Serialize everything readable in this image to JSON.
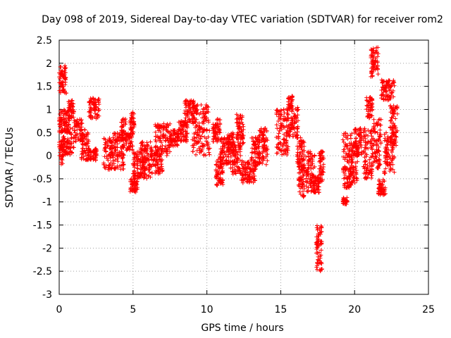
{
  "chart_data": {
    "type": "scatter",
    "title": "Day 098 of 2019, Sidereal Day-to-day VTEC variation (SDTVAR) for receiver rom2",
    "xlabel": "GPS time / hours",
    "ylabel": "SDTVAR / TECUs",
    "xlim": [
      0,
      25
    ],
    "ylim": [
      -3,
      2.5
    ],
    "grid": true,
    "marker": "+",
    "marker_color": "#ff0000",
    "x_ticks": [
      "0",
      "5",
      "10",
      "15",
      "20",
      "25"
    ],
    "y_ticks": [
      "2.5",
      "2",
      "1.5",
      "1",
      "0.5",
      "0",
      "-0.5",
      "-1",
      "-1.5",
      "-2",
      "-2.5",
      "-3"
    ],
    "x_tick_values": [
      0,
      5,
      10,
      15,
      20,
      25
    ],
    "y_tick_values": [
      2.5,
      2,
      1.5,
      1,
      0.5,
      0,
      -0.5,
      -1,
      -1.5,
      -2,
      -2.5,
      -3
    ],
    "clusters": [
      {
        "x": [
          0.0,
          0.3
        ],
        "y": [
          -0.2,
          0.4
        ]
      },
      {
        "x": [
          0.0,
          0.5
        ],
        "y": [
          1.35,
          1.95
        ]
      },
      {
        "x": [
          0.0,
          0.7
        ],
        "y": [
          0.5,
          1.0
        ]
      },
      {
        "x": [
          0.3,
          1.0
        ],
        "y": [
          0.0,
          0.6
        ]
      },
      {
        "x": [
          0.6,
          1.0
        ],
        "y": [
          0.8,
          1.2
        ]
      },
      {
        "x": [
          1.0,
          1.6
        ],
        "y": [
          0.3,
          0.8
        ]
      },
      {
        "x": [
          1.5,
          2.0
        ],
        "y": [
          -0.1,
          0.6
        ]
      },
      {
        "x": [
          2.0,
          2.7
        ],
        "y": [
          0.8,
          1.25
        ]
      },
      {
        "x": [
          2.0,
          2.6
        ],
        "y": [
          -0.1,
          0.15
        ]
      },
      {
        "x": [
          3.0,
          3.8
        ],
        "y": [
          -0.3,
          0.4
        ]
      },
      {
        "x": [
          3.7,
          4.4
        ],
        "y": [
          -0.3,
          0.5
        ]
      },
      {
        "x": [
          4.2,
          4.5
        ],
        "y": [
          0.3,
          0.8
        ]
      },
      {
        "x": [
          4.5,
          5.0
        ],
        "y": [
          0.1,
          0.5
        ]
      },
      {
        "x": [
          4.8,
          5.1
        ],
        "y": [
          0.5,
          0.95
        ]
      },
      {
        "x": [
          4.8,
          5.3
        ],
        "y": [
          -0.8,
          -0.5
        ]
      },
      {
        "x": [
          5.0,
          5.8
        ],
        "y": [
          -0.5,
          0.1
        ]
      },
      {
        "x": [
          5.5,
          6.2
        ],
        "y": [
          -0.5,
          0.3
        ]
      },
      {
        "x": [
          6.2,
          7.0
        ],
        "y": [
          -0.4,
          0.2
        ]
      },
      {
        "x": [
          6.5,
          7.5
        ],
        "y": [
          0.0,
          0.7
        ]
      },
      {
        "x": [
          7.5,
          8.1
        ],
        "y": [
          0.2,
          0.55
        ]
      },
      {
        "x": [
          8.0,
          8.7
        ],
        "y": [
          0.3,
          0.75
        ]
      },
      {
        "x": [
          8.5,
          9.3
        ],
        "y": [
          0.7,
          1.2
        ]
      },
      {
        "x": [
          9.0,
          10.2
        ],
        "y": [
          0.0,
          1.1
        ]
      },
      {
        "x": [
          10.4,
          10.9
        ],
        "y": [
          0.3,
          0.8
        ]
      },
      {
        "x": [
          10.6,
          11.1
        ],
        "y": [
          -0.65,
          0.0
        ]
      },
      {
        "x": [
          10.9,
          11.5
        ],
        "y": [
          -0.2,
          0.4
        ]
      },
      {
        "x": [
          11.4,
          11.9
        ],
        "y": [
          0.0,
          0.5
        ]
      },
      {
        "x": [
          11.6,
          12.3
        ],
        "y": [
          -0.4,
          0.3
        ]
      },
      {
        "x": [
          12.0,
          12.5
        ],
        "y": [
          0.2,
          0.9
        ]
      },
      {
        "x": [
          12.3,
          13.3
        ],
        "y": [
          -0.6,
          -0.1
        ]
      },
      {
        "x": [
          13.0,
          13.6
        ],
        "y": [
          -0.3,
          0.4
        ]
      },
      {
        "x": [
          13.5,
          14.1
        ],
        "y": [
          -0.2,
          0.6
        ]
      },
      {
        "x": [
          14.7,
          15.5
        ],
        "y": [
          0.0,
          1.0
        ]
      },
      {
        "x": [
          15.5,
          15.8
        ],
        "y": [
          1.0,
          1.3
        ]
      },
      {
        "x": [
          15.4,
          16.2
        ],
        "y": [
          0.4,
          1.05
        ]
      },
      {
        "x": [
          16.1,
          16.6
        ],
        "y": [
          -0.3,
          0.4
        ]
      },
      {
        "x": [
          16.2,
          16.6
        ],
        "y": [
          -0.9,
          -0.2
        ]
      },
      {
        "x": [
          16.7,
          17.3
        ],
        "y": [
          -0.8,
          0.1
        ]
      },
      {
        "x": [
          17.2,
          17.6
        ],
        "y": [
          -0.8,
          -0.4
        ]
      },
      {
        "x": [
          17.4,
          17.8
        ],
        "y": [
          -2.5,
          -1.5
        ]
      },
      {
        "x": [
          17.6,
          17.9
        ],
        "y": [
          -0.6,
          0.1
        ]
      },
      {
        "x": [
          19.2,
          19.5
        ],
        "y": [
          -1.05,
          -0.9
        ]
      },
      {
        "x": [
          19.2,
          19.8
        ],
        "y": [
          -0.7,
          0.5
        ]
      },
      {
        "x": [
          19.6,
          20.2
        ],
        "y": [
          -0.7,
          0.3
        ]
      },
      {
        "x": [
          20.0,
          20.5
        ],
        "y": [
          0.0,
          0.6
        ]
      },
      {
        "x": [
          20.6,
          21.2
        ],
        "y": [
          -0.5,
          0.6
        ]
      },
      {
        "x": [
          20.8,
          21.2
        ],
        "y": [
          0.8,
          1.3
        ]
      },
      {
        "x": [
          21.1,
          21.6
        ],
        "y": [
          1.7,
          2.35
        ]
      },
      {
        "x": [
          21.2,
          21.8
        ],
        "y": [
          -0.3,
          0.8
        ]
      },
      {
        "x": [
          21.6,
          22.1
        ],
        "y": [
          -0.85,
          -0.5
        ]
      },
      {
        "x": [
          21.8,
          22.7
        ],
        "y": [
          1.2,
          1.65
        ]
      },
      {
        "x": [
          22.0,
          22.7
        ],
        "y": [
          -0.4,
          0.5
        ]
      },
      {
        "x": [
          22.4,
          22.9
        ],
        "y": [
          0.2,
          1.1
        ]
      }
    ]
  }
}
